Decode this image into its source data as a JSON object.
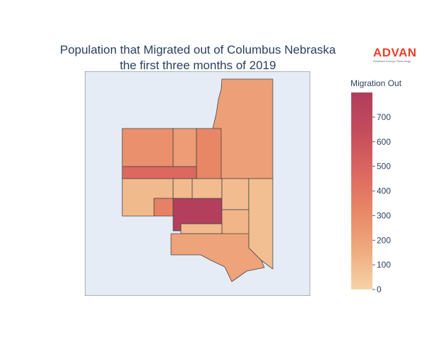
{
  "title": {
    "line1": "Population that Migrated out of Columbus Nebraska",
    "line2": "the first three months of 2019"
  },
  "logo": {
    "name": "ADVAN",
    "tagline": "Research through Technology",
    "color": "#e8402a"
  },
  "colorbar": {
    "title": "Migration Out",
    "ticks": [
      "0",
      "100",
      "200",
      "300",
      "400",
      "500",
      "600",
      "700"
    ],
    "min": 0,
    "max": 800,
    "colors": [
      "#f5d4a6",
      "#efaa7e",
      "#e88766",
      "#dc6660",
      "#c44d5b",
      "#b03d5d"
    ]
  },
  "chart_data": {
    "type": "choropleth",
    "value_label": "Migration Out",
    "range": [
      0,
      800
    ],
    "regions": [
      {
        "id": "northeast-large",
        "value": 210
      },
      {
        "id": "north-west-block",
        "value": 280
      },
      {
        "id": "north-middle-block",
        "value": 220
      },
      {
        "id": "north-east-small-block",
        "value": 320
      },
      {
        "id": "central-strip",
        "value": 470
      },
      {
        "id": "west-lower-left",
        "value": 100
      },
      {
        "id": "west-lower-small",
        "value": 350
      },
      {
        "id": "center-lower-left",
        "value": 95
      },
      {
        "id": "center-block-1",
        "value": 90
      },
      {
        "id": "center-block-2",
        "value": 110
      },
      {
        "id": "center-dark-block",
        "value": 780
      },
      {
        "id": "east-upper-block",
        "value": 90
      },
      {
        "id": "east-right-block",
        "value": 80
      },
      {
        "id": "south-center-block",
        "value": 120
      },
      {
        "id": "south-center-block-2",
        "value": 95
      },
      {
        "id": "south-large",
        "value": 190
      }
    ]
  }
}
